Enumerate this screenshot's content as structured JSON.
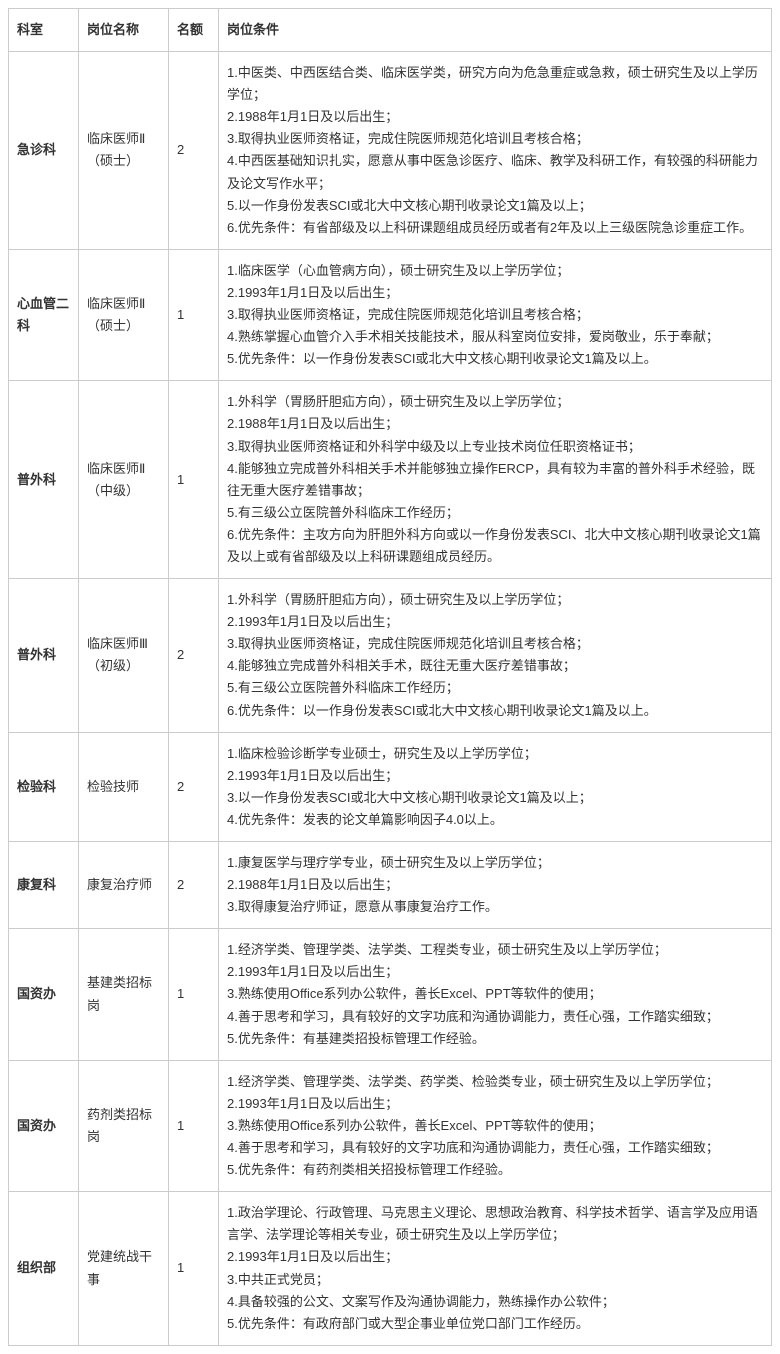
{
  "headers": {
    "department": "科室",
    "position": "岗位名称",
    "quota": "名额",
    "conditions": "岗位条件"
  },
  "rows": [
    {
      "department": "急诊科",
      "position": "临床医师Ⅱ（硕士）",
      "quota": "2",
      "conditions": "1.中医类、中西医结合类、临床医学类，研究方向为危急重症或急救，硕士研究生及以上学历学位；\n2.1988年1月1日及以后出生；\n3.取得执业医师资格证，完成住院医师规范化培训且考核合格；\n4.中西医基础知识扎实，愿意从事中医急诊医疗、临床、教学及科研工作，有较强的科研能力及论文写作水平；\n5.以一作身份发表SCI或北大中文核心期刊收录论文1篇及以上；\n6.优先条件：有省部级及以上科研课题组成员经历或者有2年及以上三级医院急诊重症工作。"
    },
    {
      "department": "心血管二科",
      "position": "临床医师Ⅱ（硕士）",
      "quota": "1",
      "conditions": "1.临床医学（心血管病方向），硕士研究生及以上学历学位；\n2.1993年1月1日及以后出生；\n3.取得执业医师资格证，完成住院医师规范化培训且考核合格；\n4.熟练掌握心血管介入手术相关技能技术，服从科室岗位安排，爱岗敬业，乐于奉献；\n5.优先条件：以一作身份发表SCI或北大中文核心期刊收录论文1篇及以上。"
    },
    {
      "department": "普外科",
      "position": "临床医师Ⅱ（中级）",
      "quota": "1",
      "conditions": "1.外科学（胃肠肝胆疝方向），硕士研究生及以上学历学位；\n2.1988年1月1日及以后出生；\n3.取得执业医师资格证和外科学中级及以上专业技术岗位任职资格证书；\n4.能够独立完成普外科相关手术并能够独立操作ERCP，具有较为丰富的普外科手术经验，既往无重大医疗差错事故；\n5.有三级公立医院普外科临床工作经历；\n6.优先条件：主攻方向为肝胆外科方向或以一作身份发表SCI、北大中文核心期刊收录论文1篇及以上或有省部级及以上科研课题组成员经历。"
    },
    {
      "department": "普外科",
      "position": "临床医师Ⅲ（初级）",
      "quota": "2",
      "conditions": "1.外科学（胃肠肝胆疝方向），硕士研究生及以上学历学位；\n2.1993年1月1日及以后出生；\n3.取得执业医师资格证，完成住院医师规范化培训且考核合格；\n4.能够独立完成普外科相关手术，既往无重大医疗差错事故；\n5.有三级公立医院普外科临床工作经历；\n6.优先条件：以一作身份发表SCI或北大中文核心期刊收录论文1篇及以上。"
    },
    {
      "department": "检验科",
      "position": "检验技师",
      "quota": "2",
      "conditions": "1.临床检验诊断学专业硕士，研究生及以上学历学位；\n2.1993年1月1日及以后出生；\n3.以一作身份发表SCI或北大中文核心期刊收录论文1篇及以上；\n4.优先条件：发表的论文单篇影响因子4.0以上。"
    },
    {
      "department": "康复科",
      "position": "康复治疗师",
      "quota": "2",
      "conditions": "1.康复医学与理疗学专业，硕士研究生及以上学历学位；\n2.1988年1月1日及以后出生；\n3.取得康复治疗师证，愿意从事康复治疗工作。"
    },
    {
      "department": "国资办",
      "position": "基建类招标岗",
      "quota": "1",
      "conditions": "1.经济学类、管理学类、法学类、工程类专业，硕士研究生及以上学历学位；\n2.1993年1月1日及以后出生；\n3.熟练使用Office系列办公软件，善长Excel、PPT等软件的使用；\n4.善于思考和学习，具有较好的文字功底和沟通协调能力，责任心强，工作踏实细致；\n5.优先条件：有基建类招投标管理工作经验。"
    },
    {
      "department": "国资办",
      "position": "药剂类招标岗",
      "quota": "1",
      "conditions": "1.经济学类、管理学类、法学类、药学类、检验类专业，硕士研究生及以上学历学位；\n2.1993年1月1日及以后出生；\n3.熟练使用Office系列办公软件，善长Excel、PPT等软件的使用；\n4.善于思考和学习，具有较好的文字功底和沟通协调能力，责任心强，工作踏实细致；\n5.优先条件：有药剂类相关招投标管理工作经验。"
    },
    {
      "department": "组织部",
      "position": "党建统战干事",
      "quota": "1",
      "conditions": "1.政治学理论、行政管理、马克思主义理论、思想政治教育、科学技术哲学、语言学及应用语言学、法学理论等相关专业，硕士研究生及以上学历学位；\n2.1993年1月1日及以后出生；\n3.中共正式党员；\n4.具备较强的公文、文案写作及沟通协调能力，熟练操作办公软件；\n5.优先条件：有政府部门或大型企事业单位党口部门工作经历。"
    }
  ]
}
